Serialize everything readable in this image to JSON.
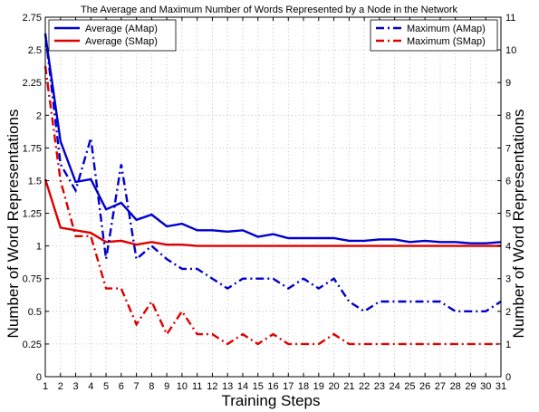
{
  "chart_data": {
    "type": "line",
    "title": "The Average and Maximum Number of Words Represented by a Node in the Network",
    "xlabel": "Training Steps",
    "ylabel_left": "Number of Word Representations",
    "ylabel_right": "Number of Word Representations",
    "x": [
      1,
      2,
      3,
      4,
      5,
      6,
      7,
      8,
      9,
      10,
      11,
      12,
      13,
      14,
      15,
      16,
      17,
      18,
      19,
      20,
      21,
      22,
      23,
      24,
      25,
      26,
      27,
      28,
      29,
      30,
      31
    ],
    "xlim": [
      1,
      31
    ],
    "ylim_left": [
      0,
      2.75
    ],
    "ylim_right": [
      0,
      11
    ],
    "yticks_left": [
      "0",
      "0.25",
      "0.5",
      "0.75",
      "1",
      "1.25",
      "1.5",
      "1.75",
      "2",
      "2.25",
      "2.5",
      "2.75"
    ],
    "yticks_right": [
      "0",
      "1",
      "2",
      "3",
      "4",
      "5",
      "6",
      "7",
      "8",
      "9",
      "10",
      "11"
    ],
    "grid": true,
    "series": [
      {
        "name": "Average (AMap)",
        "axis": "left",
        "color": "#0000cc",
        "style": "solid",
        "values": [
          2.62,
          1.8,
          1.49,
          1.51,
          1.28,
          1.33,
          1.2,
          1.24,
          1.15,
          1.17,
          1.12,
          1.12,
          1.11,
          1.12,
          1.07,
          1.09,
          1.06,
          1.06,
          1.06,
          1.06,
          1.04,
          1.04,
          1.05,
          1.05,
          1.03,
          1.04,
          1.03,
          1.03,
          1.02,
          1.02,
          1.03
        ]
      },
      {
        "name": "Average (SMap)",
        "axis": "left",
        "color": "#dd0000",
        "style": "solid",
        "values": [
          1.51,
          1.14,
          1.12,
          1.1,
          1.03,
          1.04,
          1.01,
          1.03,
          1.01,
          1.01,
          1.0,
          1.0,
          1.0,
          1.0,
          1.0,
          1.0,
          1.0,
          1.0,
          1.0,
          1.0,
          1.0,
          1.0,
          1.0,
          1.0,
          1.0,
          1.0,
          1.0,
          1.0,
          1.0,
          1.0,
          1.0
        ]
      },
      {
        "name": "Maximum (AMap)",
        "axis": "right",
        "color": "#0000cc",
        "style": "dashdot",
        "values": [
          10.5,
          6.5,
          5.7,
          7.3,
          3.6,
          6.5,
          3.6,
          4.0,
          3.6,
          3.3,
          3.3,
          3.0,
          2.7,
          3.0,
          3.0,
          3.0,
          2.7,
          3.0,
          2.7,
          3.0,
          2.3,
          2.0,
          2.3,
          2.3,
          2.3,
          2.3,
          2.3,
          2.0,
          2.0,
          2.0,
          2.3
        ]
      },
      {
        "name": "Maximum (SMap)",
        "axis": "right",
        "color": "#dd0000",
        "style": "dashdot",
        "values": [
          9.5,
          6.0,
          4.3,
          4.3,
          2.7,
          2.7,
          1.6,
          2.3,
          1.3,
          2.0,
          1.3,
          1.3,
          1.0,
          1.3,
          1.0,
          1.3,
          1.0,
          1.0,
          1.0,
          1.3,
          1.0,
          1.0,
          1.0,
          1.0,
          1.0,
          1.0,
          1.0,
          1.0,
          1.0,
          1.0,
          1.0
        ]
      }
    ],
    "legends": [
      {
        "placement": "top-left",
        "entries": [
          "Average (AMap)",
          "Average (SMap)"
        ]
      },
      {
        "placement": "top-right",
        "entries": [
          "Maximum (AMap)",
          "Maximum (SMap)"
        ]
      }
    ]
  }
}
